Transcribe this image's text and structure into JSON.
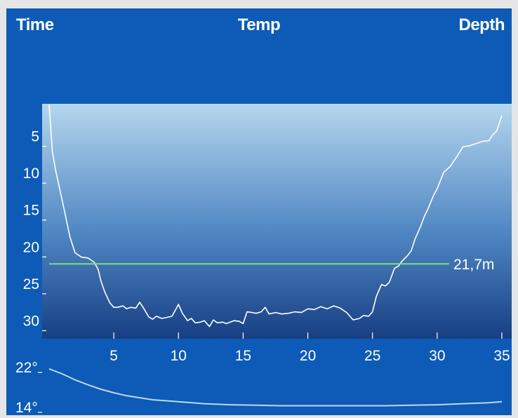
{
  "header": {
    "time_label": "Time",
    "temp_label": "Temp",
    "depth_label": "Depth"
  },
  "colors": {
    "panel_bg": "#0d5bb6",
    "plot_gradient_top": "#b5d6ee",
    "plot_gradient_bottom": "#173f84",
    "profile_line": "#ffffff",
    "max_depth_line": "#7ee07e",
    "temp_line": "#bcd8f2"
  },
  "chart_data": [
    {
      "type": "line",
      "name": "depth-profile",
      "x_unit": "min",
      "y_unit": "m",
      "xlim": [
        0,
        35.5
      ],
      "ylim": [
        0,
        31
      ],
      "y_inverted": true,
      "x_ticks": [
        5,
        10,
        15,
        20,
        25,
        30,
        35
      ],
      "x_tick_labels": [
        "5",
        "10",
        "15",
        "20",
        "25",
        "30",
        "35"
      ],
      "y_ticks": [
        5,
        10,
        15,
        20,
        25,
        30
      ],
      "y_tick_labels": [
        "5",
        "10",
        "15",
        "20",
        "25",
        "30"
      ],
      "grid": false,
      "reference_line": {
        "y": 21.7,
        "label": "21,7m"
      },
      "series": [
        {
          "x": [
            0.0,
            0.25,
            0.5,
            1.0,
            1.3,
            1.6,
            2.0,
            2.5,
            3.0,
            3.5,
            3.8,
            4.0,
            4.3,
            4.7,
            5.0,
            5.3,
            5.7,
            6.0,
            6.3,
            6.7,
            7.0,
            7.3,
            7.7,
            8.0,
            8.3,
            8.7,
            9.0,
            9.5,
            10.0,
            10.3,
            10.7,
            11.0,
            11.3,
            11.7,
            12.0,
            12.4,
            12.7,
            13.0,
            13.4,
            13.7,
            14.0,
            14.3,
            14.7,
            15.0,
            15.3,
            15.7,
            16.0,
            16.4,
            16.7,
            17.0,
            17.5,
            18.0,
            18.5,
            19.0,
            19.5,
            20.0,
            20.5,
            21.0,
            21.5,
            22.0,
            22.5,
            23.0,
            23.5,
            24.0,
            24.3,
            24.7,
            25.0,
            25.3,
            25.7,
            26.0,
            26.3,
            26.7,
            27.0,
            27.3,
            27.7,
            28.0,
            28.3,
            28.7,
            29.0,
            29.3,
            29.7,
            30.0,
            30.5,
            31.0,
            31.5,
            32.0,
            32.5,
            33.0,
            33.5,
            34.0,
            34.3,
            34.6,
            35.0
          ],
          "y": [
            0.1,
            6.5,
            9.0,
            13.0,
            15.5,
            18.0,
            20.2,
            20.8,
            20.9,
            21.5,
            22.5,
            24.0,
            25.5,
            27.0,
            27.6,
            27.6,
            27.4,
            27.8,
            27.6,
            27.7,
            26.9,
            27.7,
            28.9,
            29.2,
            28.8,
            29.1,
            29.0,
            28.8,
            27.2,
            28.4,
            29.4,
            29.1,
            29.7,
            29.6,
            29.4,
            30.2,
            29.3,
            29.7,
            29.6,
            29.8,
            29.6,
            29.4,
            29.5,
            29.8,
            28.2,
            28.3,
            28.4,
            28.2,
            27.6,
            28.5,
            28.3,
            28.5,
            28.4,
            28.2,
            28.3,
            27.8,
            27.9,
            27.5,
            27.8,
            27.4,
            27.7,
            28.3,
            29.3,
            29.1,
            28.7,
            28.8,
            28.2,
            26.1,
            24.5,
            24.7,
            24.2,
            22.3,
            22.0,
            21.3,
            20.6,
            19.9,
            18.3,
            16.7,
            15.3,
            14.2,
            12.5,
            11.5,
            9.3,
            8.5,
            7.2,
            5.8,
            5.7,
            5.4,
            5.1,
            5.0,
            4.2,
            3.7,
            1.6
          ]
        }
      ]
    },
    {
      "type": "line",
      "name": "temperature",
      "y_unit": "°",
      "xlim": [
        0,
        35.5
      ],
      "ylim": [
        13,
        23
      ],
      "y_ticks": [
        22,
        14
      ],
      "y_tick_labels": [
        "22°",
        "14°"
      ],
      "series": [
        {
          "x": [
            0,
            1,
            2,
            3,
            4,
            5,
            6,
            8,
            10,
            12,
            14,
            16,
            18,
            20,
            22,
            24,
            26,
            28,
            30,
            32,
            34,
            35
          ],
          "y": [
            21.6,
            20.6,
            19.4,
            18.4,
            17.5,
            16.8,
            16.2,
            15.4,
            15.0,
            14.6,
            14.4,
            14.3,
            14.2,
            14.2,
            14.2,
            14.2,
            14.2,
            14.3,
            14.4,
            14.6,
            14.8,
            15.0
          ]
        }
      ]
    }
  ]
}
